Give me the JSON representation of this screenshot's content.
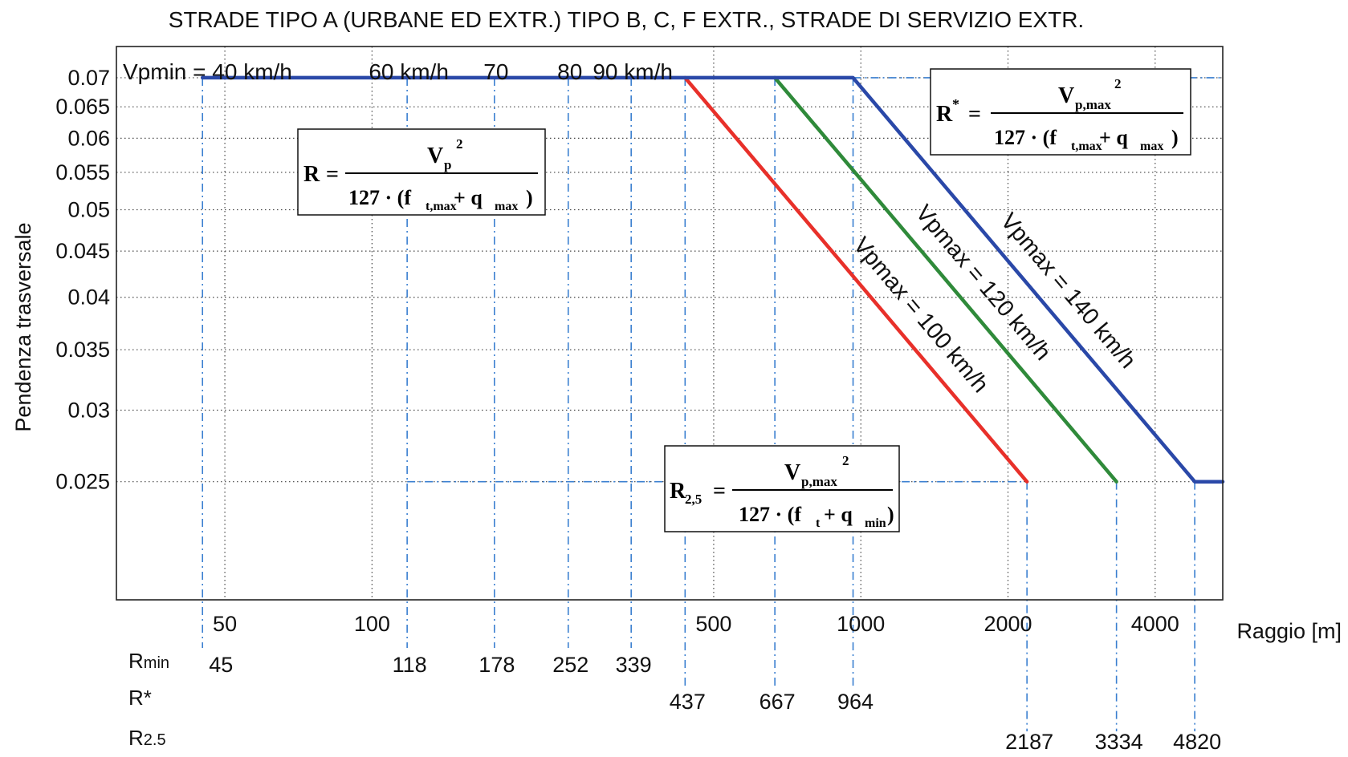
{
  "chart_data": {
    "type": "line",
    "title": "STRADE TIPO A (URBANE ED EXTR.) TIPO B,  C,  F EXTR., STRADE DI SERVIZIO EXTR.",
    "xlabel": "Raggio [m]",
    "ylabel": "Pendenza trasversale",
    "xscale": "log",
    "xlim": [
      30,
      5500
    ],
    "ylim": [
      0.0185,
      0.0758
    ],
    "grid": true,
    "x_ticks": [
      "50",
      "100",
      "500",
      "1000",
      "2000",
      "4000"
    ],
    "x_tick_values": [
      50,
      100,
      500,
      1000,
      2000,
      4000
    ],
    "y_ticks": [
      "0.07",
      "0.065",
      "0.06",
      "0.055",
      "0.05",
      "0.045",
      "0.04",
      "0.035",
      "0.03",
      "0.025"
    ],
    "y_tick_values": [
      0.07,
      0.065,
      0.06,
      0.055,
      0.05,
      0.045,
      0.04,
      0.035,
      0.03,
      0.025
    ],
    "series": [
      {
        "name": "Vpmax = 100 km/h",
        "color": "#e8302a",
        "x": [
          437,
          2187
        ],
        "y": [
          0.07,
          0.025
        ]
      },
      {
        "name": "Vpmax = 120 km/h",
        "color": "#2f8a3a",
        "x": [
          667,
          3334
        ],
        "y": [
          0.07,
          0.025
        ]
      },
      {
        "name": "Vpmax = 140 km/h",
        "color": "#2a48a8",
        "x": [
          45,
          964,
          4820,
          5500
        ],
        "y": [
          0.07,
          0.07,
          0.025,
          0.025
        ]
      }
    ],
    "speeds": {
      "label": "Vpmin = 40 km/h",
      "items": [
        "60 km/h",
        "70",
        "80",
        "90 km/h"
      ],
      "radii": [
        118,
        178,
        252,
        339
      ]
    },
    "rows": [
      {
        "label_main": "R",
        "label_sub": "min",
        "values": [
          "45",
          "118",
          "178",
          "252",
          "339"
        ],
        "radii": [
          45,
          118,
          178,
          252,
          339
        ]
      },
      {
        "label_main": "R*",
        "label_sub": "",
        "values": [
          "437",
          "667",
          "964"
        ],
        "radii": [
          437,
          667,
          964
        ]
      },
      {
        "label_main": "R",
        "label_sub": "2.5",
        "values": [
          "2187",
          "3334",
          "4820"
        ],
        "radii": [
          2187,
          3334,
          4820
        ]
      }
    ],
    "annotation_color": "#3a7fd0",
    "formulas": [
      {
        "lhs": "R",
        "lhs_sup": "",
        "lhs_sub": "",
        "num": "V",
        "num_sub": "p",
        "num_sup": "2",
        "den": "127 · (f",
        "den_sub1": "t,max",
        "den_mid": " + q",
        "den_sub2": "max",
        "den_end": ")"
      },
      {
        "lhs": "R",
        "lhs_sup": "*",
        "lhs_sub": "",
        "num": "V",
        "num_sub": "p,max",
        "num_sup": "2",
        "den": "127 · (f",
        "den_sub1": "t,max",
        "den_mid": " + q",
        "den_sub2": "max",
        "den_end": ")"
      },
      {
        "lhs": "R",
        "lhs_sup": "",
        "lhs_sub": "2,5",
        "num": "V",
        "num_sub": "p,max",
        "num_sup": "2",
        "den": "127 · (f",
        "den_sub1": "t",
        "den_mid": " + q",
        "den_sub2": "min",
        "den_end": ")"
      }
    ]
  }
}
